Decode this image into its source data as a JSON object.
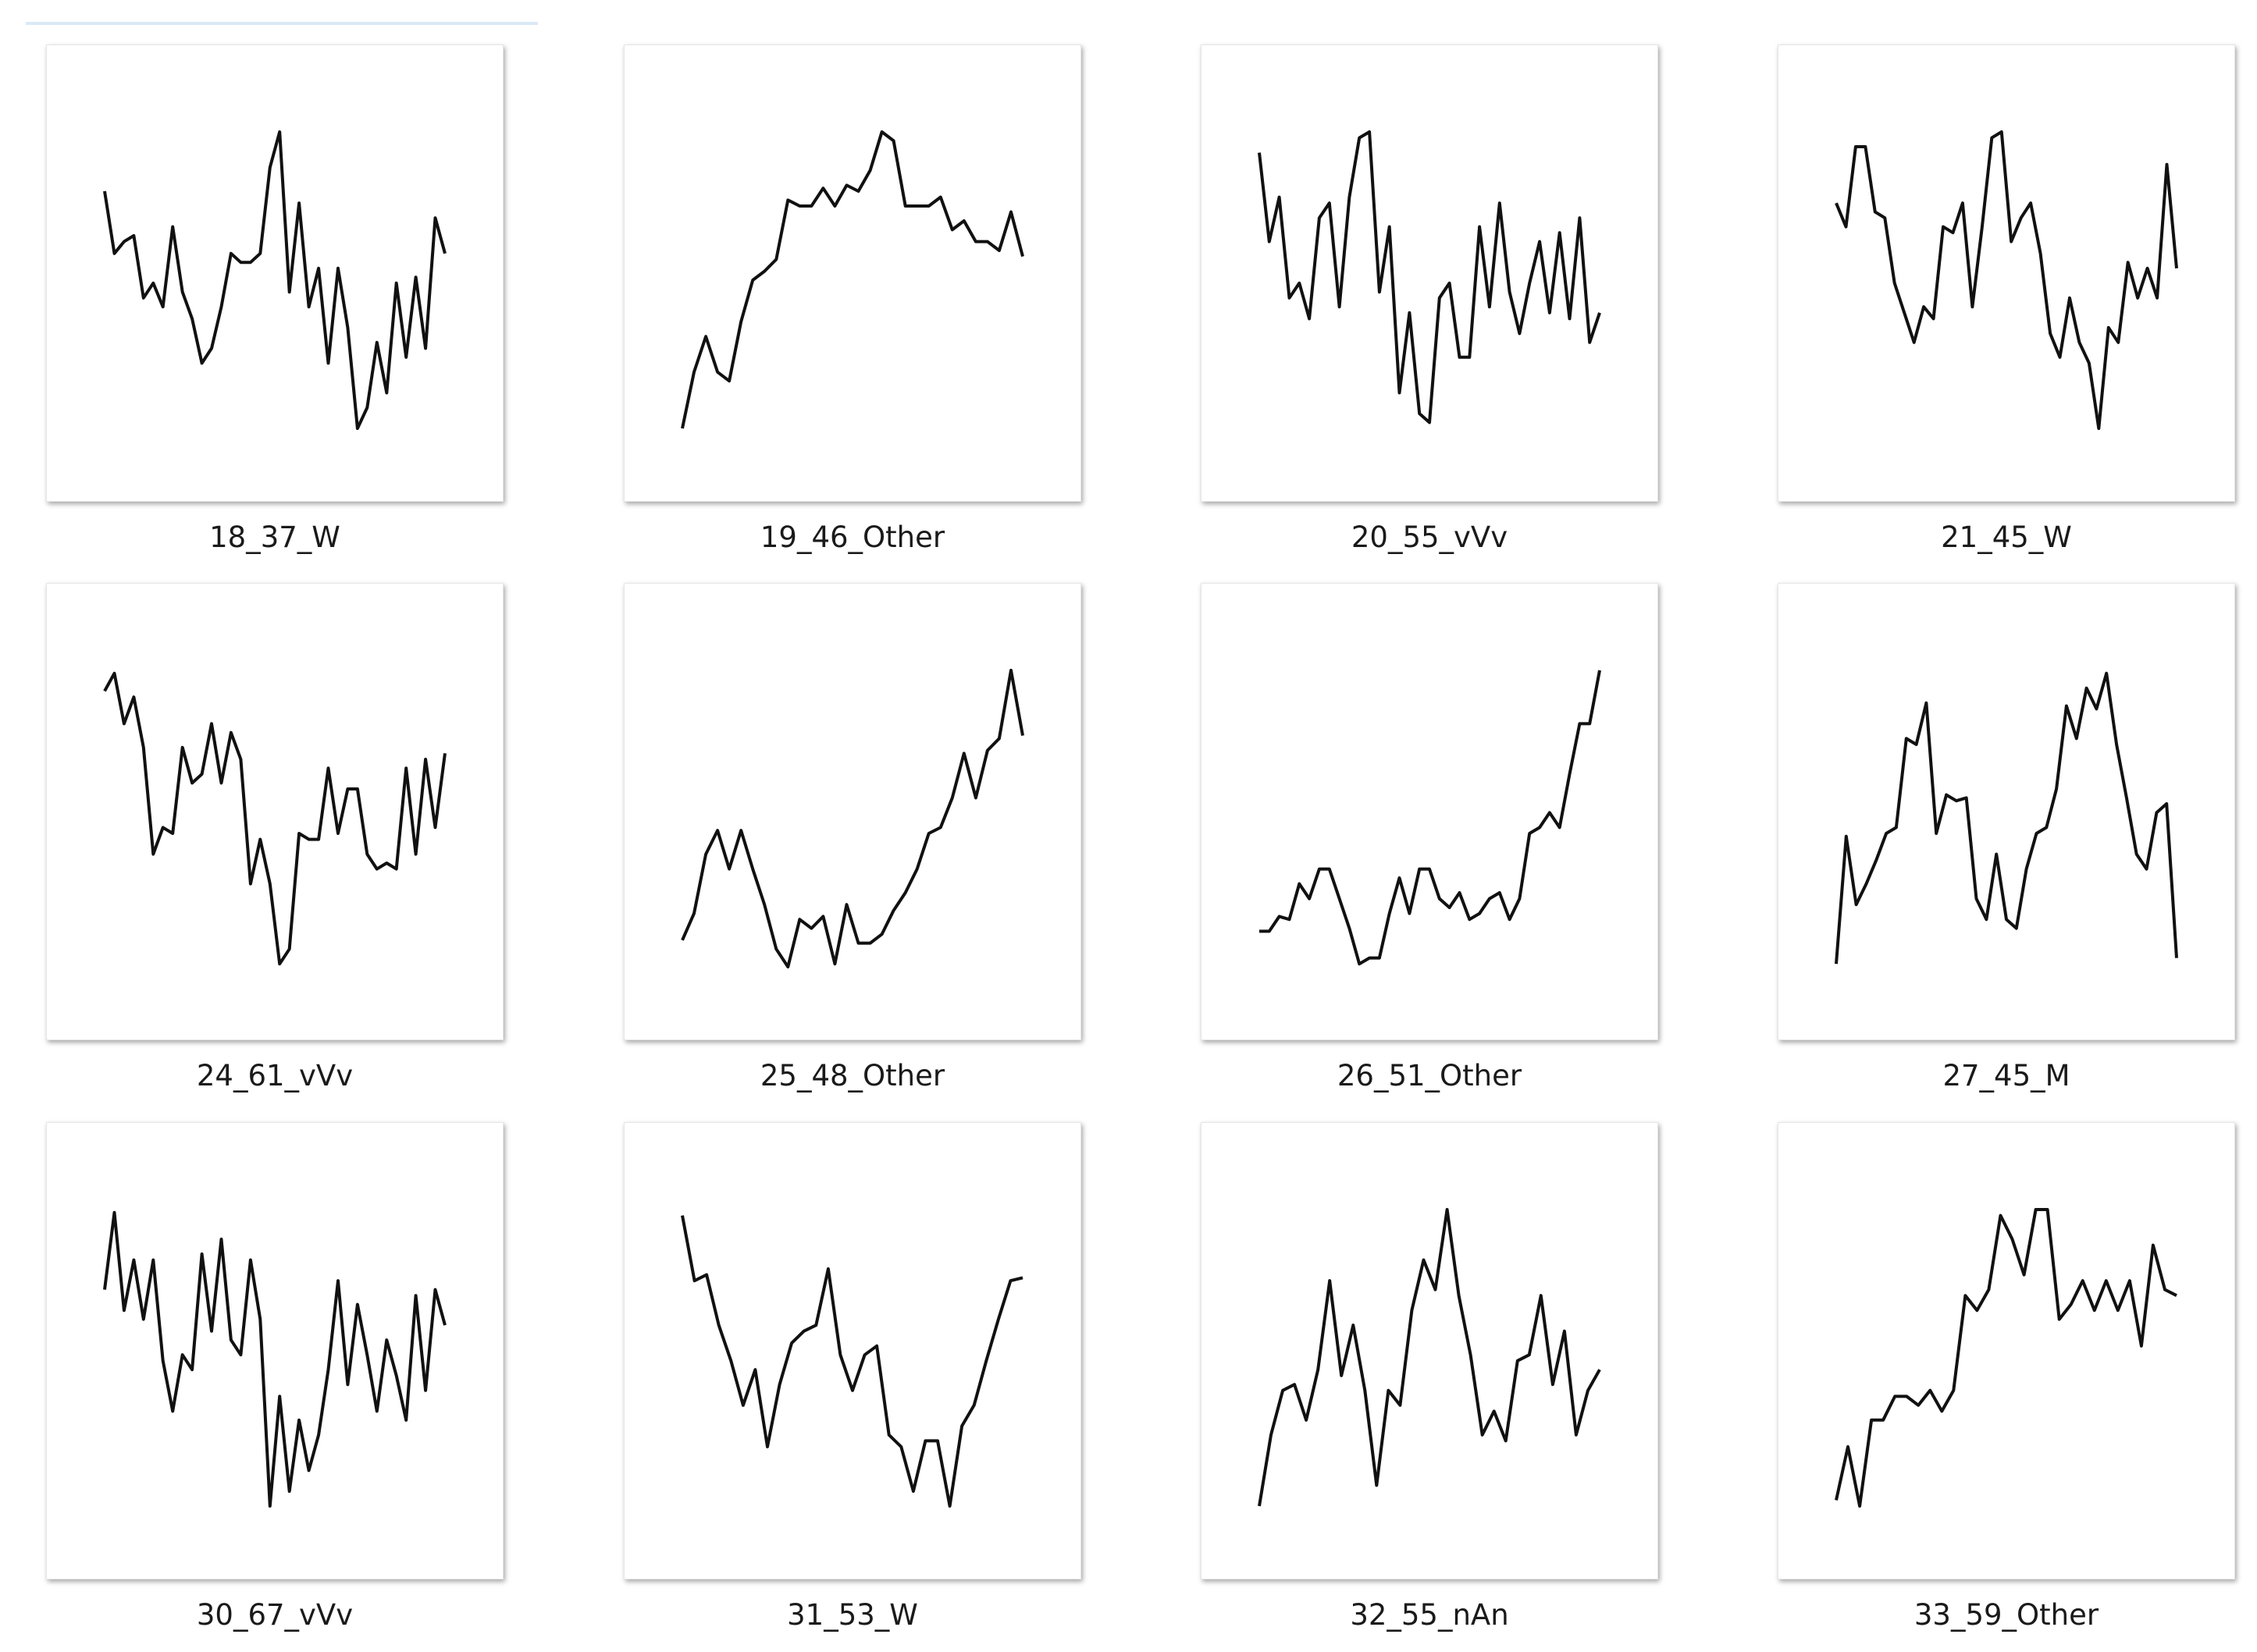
{
  "files": [
    {
      "name": "18_37_W",
      "chart": {
        "type": "line",
        "color": "#111111",
        "ylim": [
          0,
          100
        ],
        "values": [
          80,
          59,
          63,
          65,
          44,
          49,
          41,
          68,
          46,
          37,
          22,
          27,
          41,
          59,
          56,
          56,
          59,
          88,
          100,
          46,
          76,
          41,
          54,
          22,
          54,
          34,
          0,
          7,
          29,
          12,
          49,
          24,
          51,
          27,
          71,
          59
        ]
      }
    },
    {
      "name": "19_46_Other",
      "chart": {
        "type": "line",
        "color": "#111111",
        "ylim": [
          0,
          100
        ],
        "values": [
          0,
          19,
          31,
          19,
          16,
          36,
          50,
          53,
          57,
          77,
          75,
          75,
          81,
          75,
          82,
          80,
          87,
          100,
          97,
          75,
          75,
          75,
          78,
          67,
          70,
          63,
          63,
          60,
          73,
          58
        ]
      }
    },
    {
      "name": "20_55_vVv",
      "chart": {
        "type": "line",
        "color": "#111111",
        "ylim": [
          0,
          100
        ],
        "values": [
          93,
          63,
          78,
          44,
          49,
          37,
          71,
          76,
          41,
          78,
          98,
          100,
          46,
          68,
          12,
          39,
          5,
          2,
          44,
          49,
          24,
          24,
          68,
          41,
          76,
          46,
          32,
          49,
          63,
          39,
          66,
          37,
          71,
          29,
          39
        ]
      }
    },
    {
      "name": "21_45_W",
      "chart": {
        "type": "line",
        "color": "#111111",
        "ylim": [
          0,
          100
        ],
        "values": [
          76,
          68,
          95,
          95,
          73,
          71,
          49,
          39,
          29,
          41,
          37,
          68,
          66,
          76,
          41,
          68,
          98,
          100,
          63,
          71,
          76,
          59,
          32,
          24,
          44,
          29,
          22,
          0,
          34,
          29,
          56,
          44,
          54,
          44,
          89,
          54
        ]
      }
    },
    {
      "name": "24_61_vVv",
      "chart": {
        "type": "line",
        "color": "#111111",
        "ylim": [
          0,
          100
        ],
        "values": [
          93,
          99,
          82,
          91,
          74,
          38,
          47,
          45,
          74,
          62,
          65,
          82,
          62,
          79,
          70,
          28,
          43,
          28,
          1,
          6,
          45,
          43,
          43,
          67,
          45,
          60,
          60,
          38,
          33,
          35,
          33,
          67,
          38,
          70,
          47,
          72
        ]
      }
    },
    {
      "name": "25_48_Other",
      "chart": {
        "type": "line",
        "color": "#111111",
        "ylim": [
          0,
          100
        ],
        "values": [
          9,
          18,
          38,
          46,
          33,
          46,
          33,
          21,
          6,
          0,
          16,
          13,
          17,
          1,
          21,
          8,
          8,
          11,
          19,
          25,
          33,
          45,
          47,
          57,
          72,
          57,
          73,
          77,
          100,
          78
        ]
      }
    },
    {
      "name": "26_51_Other",
      "chart": {
        "type": "line",
        "color": "#111111",
        "ylim": [
          0,
          100
        ],
        "values": [
          12,
          12,
          17,
          16,
          28,
          23,
          33,
          33,
          23,
          13,
          1,
          3,
          3,
          18,
          30,
          18,
          33,
          33,
          23,
          20,
          25,
          16,
          18,
          23,
          25,
          16,
          23,
          45,
          47,
          52,
          47,
          65,
          82,
          82,
          100
        ]
      }
    },
    {
      "name": "27_45_M",
      "chart": {
        "type": "line",
        "color": "#111111",
        "ylim": [
          0,
          100
        ],
        "values": [
          1,
          44,
          21,
          28,
          36,
          45,
          47,
          77,
          75,
          89,
          45,
          58,
          56,
          57,
          23,
          16,
          38,
          16,
          13,
          33,
          45,
          47,
          60,
          88,
          77,
          94,
          87,
          99,
          75,
          57,
          38,
          33,
          52,
          55,
          3
        ]
      }
    },
    {
      "name": "30_67_vVv",
      "chart": {
        "type": "line",
        "color": "#111111",
        "ylim": [
          0,
          100
        ],
        "values": [
          73,
          99,
          66,
          83,
          63,
          83,
          49,
          32,
          51,
          46,
          85,
          59,
          90,
          56,
          51,
          83,
          63,
          0,
          37,
          5,
          29,
          12,
          24,
          46,
          76,
          41,
          68,
          51,
          32,
          56,
          44,
          29,
          71,
          39,
          73,
          61
        ]
      }
    },
    {
      "name": "31_53_W",
      "chart": {
        "type": "line",
        "color": "#111111",
        "ylim": [
          0,
          100
        ],
        "values": [
          98,
          76,
          78,
          61,
          49,
          34,
          46,
          20,
          41,
          55,
          59,
          61,
          80,
          51,
          39,
          51,
          54,
          24,
          20,
          5,
          22,
          22,
          0,
          27,
          34,
          49,
          63,
          76,
          77
        ]
      }
    },
    {
      "name": "32_55_nAn",
      "chart": {
        "type": "line",
        "color": "#111111",
        "ylim": [
          0,
          100
        ],
        "values": [
          0,
          24,
          39,
          41,
          29,
          46,
          76,
          44,
          61,
          39,
          7,
          39,
          34,
          66,
          83,
          73,
          100,
          71,
          51,
          24,
          32,
          22,
          49,
          51,
          71,
          41,
          59,
          24,
          39,
          46
        ]
      }
    },
    {
      "name": "33_59_Other",
      "chart": {
        "type": "line",
        "color": "#111111",
        "ylim": [
          0,
          100
        ],
        "values": [
          2,
          20,
          0,
          29,
          29,
          37,
          37,
          34,
          39,
          32,
          39,
          71,
          66,
          73,
          98,
          90,
          78,
          100,
          100,
          63,
          68,
          76,
          66,
          76,
          66,
          76,
          54,
          88,
          73,
          71
        ]
      }
    }
  ]
}
